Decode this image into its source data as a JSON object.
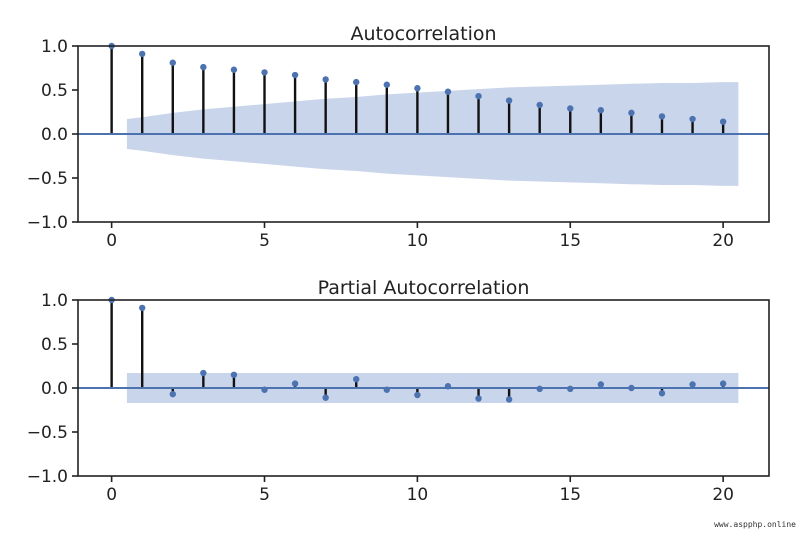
{
  "chart_data": [
    {
      "type": "stem",
      "title": "Autocorrelation",
      "xlabel": "",
      "ylabel": "",
      "xlim": [
        -1.1,
        21.5
      ],
      "ylim": [
        -1.0,
        1.0
      ],
      "xticks": [
        0,
        5,
        10,
        15,
        20
      ],
      "xtick_labels": [
        "0",
        "5",
        "10",
        "15",
        "20"
      ],
      "yticks": [
        1.0,
        0.5,
        0.0,
        -0.5,
        -1.0
      ],
      "ytick_labels": [
        "1.0",
        "0.5",
        "0.0",
        "−0.5",
        "−1.0"
      ],
      "lags": [
        0,
        1,
        2,
        3,
        4,
        5,
        6,
        7,
        8,
        9,
        10,
        11,
        12,
        13,
        14,
        15,
        16,
        17,
        18,
        19,
        20
      ],
      "values": [
        1.0,
        0.91,
        0.81,
        0.76,
        0.73,
        0.7,
        0.67,
        0.62,
        0.59,
        0.56,
        0.52,
        0.48,
        0.43,
        0.38,
        0.33,
        0.29,
        0.27,
        0.24,
        0.2,
        0.17,
        0.14
      ],
      "confidence_band": {
        "x": [
          0.5,
          1,
          2,
          3,
          4,
          5,
          6,
          7,
          8,
          9,
          10,
          11,
          12,
          13,
          14,
          15,
          16,
          17,
          18,
          19,
          20,
          20.5
        ],
        "upper": [
          0.17,
          0.19,
          0.24,
          0.28,
          0.31,
          0.34,
          0.37,
          0.4,
          0.42,
          0.45,
          0.47,
          0.49,
          0.51,
          0.53,
          0.54,
          0.55,
          0.56,
          0.57,
          0.58,
          0.58,
          0.59,
          0.59
        ],
        "lower": [
          -0.17,
          -0.19,
          -0.24,
          -0.28,
          -0.31,
          -0.34,
          -0.37,
          -0.4,
          -0.42,
          -0.45,
          -0.47,
          -0.49,
          -0.51,
          -0.53,
          -0.54,
          -0.55,
          -0.56,
          -0.57,
          -0.58,
          -0.58,
          -0.59,
          -0.59
        ]
      },
      "grid": false
    },
    {
      "type": "stem",
      "title": "Partial Autocorrelation",
      "xlabel": "",
      "ylabel": "",
      "xlim": [
        -1.1,
        21.5
      ],
      "ylim": [
        -1.0,
        1.0
      ],
      "xticks": [
        0,
        5,
        10,
        15,
        20
      ],
      "xtick_labels": [
        "0",
        "5",
        "10",
        "15",
        "20"
      ],
      "yticks": [
        1.0,
        0.5,
        0.0,
        -0.5,
        -1.0
      ],
      "ytick_labels": [
        "1.0",
        "0.5",
        "0.0",
        "−0.5",
        "−1.0"
      ],
      "lags": [
        0,
        1,
        2,
        3,
        4,
        5,
        6,
        7,
        8,
        9,
        10,
        11,
        12,
        13,
        14,
        15,
        16,
        17,
        18,
        19,
        20
      ],
      "values": [
        1.0,
        0.91,
        -0.07,
        0.17,
        0.15,
        -0.02,
        0.05,
        -0.11,
        0.1,
        -0.02,
        -0.08,
        0.02,
        -0.12,
        -0.13,
        -0.01,
        -0.01,
        0.04,
        0.0,
        -0.06,
        0.04,
        0.05
      ],
      "confidence_band": {
        "x": [
          0.5,
          20.5
        ],
        "upper": [
          0.17,
          0.17
        ],
        "lower": [
          -0.17,
          -0.17
        ]
      },
      "grid": false
    }
  ],
  "colors": {
    "stem": "#111111",
    "marker": "#4c72b0",
    "zero_line": "#4c72b0",
    "band": "#c9d5ea",
    "axes": "#222222"
  },
  "watermark": "www.aspphp.online"
}
